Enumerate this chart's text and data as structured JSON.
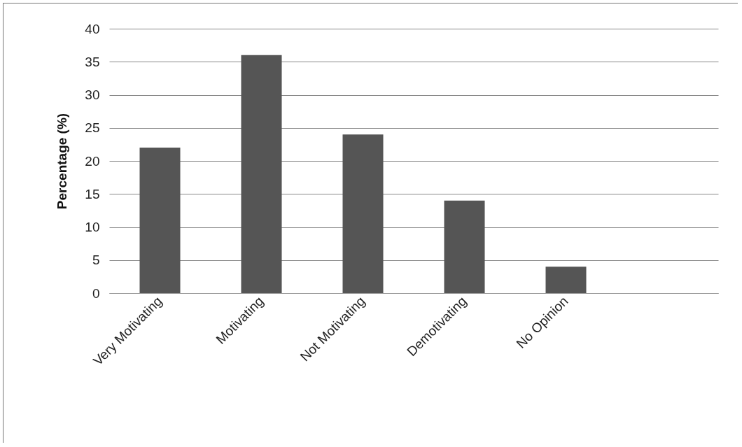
{
  "chart_data": {
    "type": "bar",
    "ylabel": "Percentage (%)",
    "categories": [
      "Very Motivating",
      "Motivating",
      "Not Motivating",
      "Demotivating",
      "No Opinion",
      null
    ],
    "values": [
      22,
      36,
      24,
      14,
      4,
      null
    ],
    "color": "#555555",
    "ylim": [
      0,
      40
    ],
    "yticks": [
      0,
      5,
      10,
      15,
      20,
      25,
      30,
      35,
      40
    ],
    "grid": "y"
  }
}
